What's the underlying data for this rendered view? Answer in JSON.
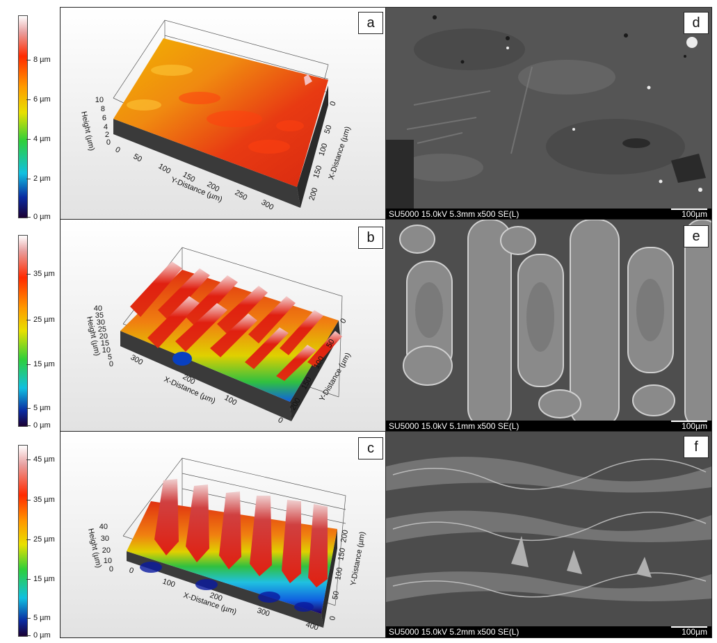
{
  "colorbars": [
    {
      "ticks": [
        "8 µm",
        "6 µm",
        "4 µm",
        "2 µm",
        "0 µm"
      ]
    },
    {
      "ticks": [
        "35 µm",
        "25 µm",
        "15 µm",
        "5 µm",
        "0 µm"
      ]
    },
    {
      "ticks": [
        "45 µm",
        "35 µm",
        "25 µm",
        "15 µm",
        "5 µm",
        "0 µm"
      ]
    }
  ],
  "panels_3d": [
    {
      "letter": "a",
      "z_title": "Height (µm)",
      "z_ticks": [
        "10",
        "8",
        "6",
        "4",
        "2",
        "0"
      ],
      "x_title": "Y-Distance (µm)",
      "x_ticks": [
        "0",
        "50",
        "100",
        "150",
        "200",
        "250",
        "300"
      ],
      "y_title": "X-Distance (µm)",
      "y_ticks": [
        "0",
        "50",
        "100",
        "150",
        "200"
      ]
    },
    {
      "letter": "b",
      "z_title": "Height (µm)",
      "z_ticks": [
        "40",
        "35",
        "30",
        "25",
        "20",
        "15",
        "10",
        "5",
        "0"
      ],
      "x_title": "X-Distance (µm)",
      "x_ticks": [
        "300",
        "200",
        "100",
        "0"
      ],
      "y_title": "Y-Distance (µm)",
      "y_ticks": [
        "0",
        "50",
        "100",
        "150",
        "200"
      ]
    },
    {
      "letter": "c",
      "z_title": "Height (µm)",
      "z_ticks": [
        "40",
        "30",
        "20",
        "10",
        "0"
      ],
      "x_title": "X-Distance (µm)",
      "x_ticks": [
        "0",
        "100",
        "200",
        "300",
        "400"
      ],
      "y_title": "Y-Distance (µm)",
      "y_ticks": [
        "0",
        "50",
        "100",
        "150",
        "200"
      ]
    }
  ],
  "sem_panels": [
    {
      "letter": "d",
      "info": "SU5000 15.0kV 5.3mm x500 SE(L)",
      "scale": "100µm"
    },
    {
      "letter": "e",
      "info": "SU5000 15.0kV 5.1mm x500 SE(L)",
      "scale": "100µm"
    },
    {
      "letter": "f",
      "info": "SU5000 15.0kV 5.2mm x500 SE(L)",
      "scale": "100µm"
    }
  ]
}
